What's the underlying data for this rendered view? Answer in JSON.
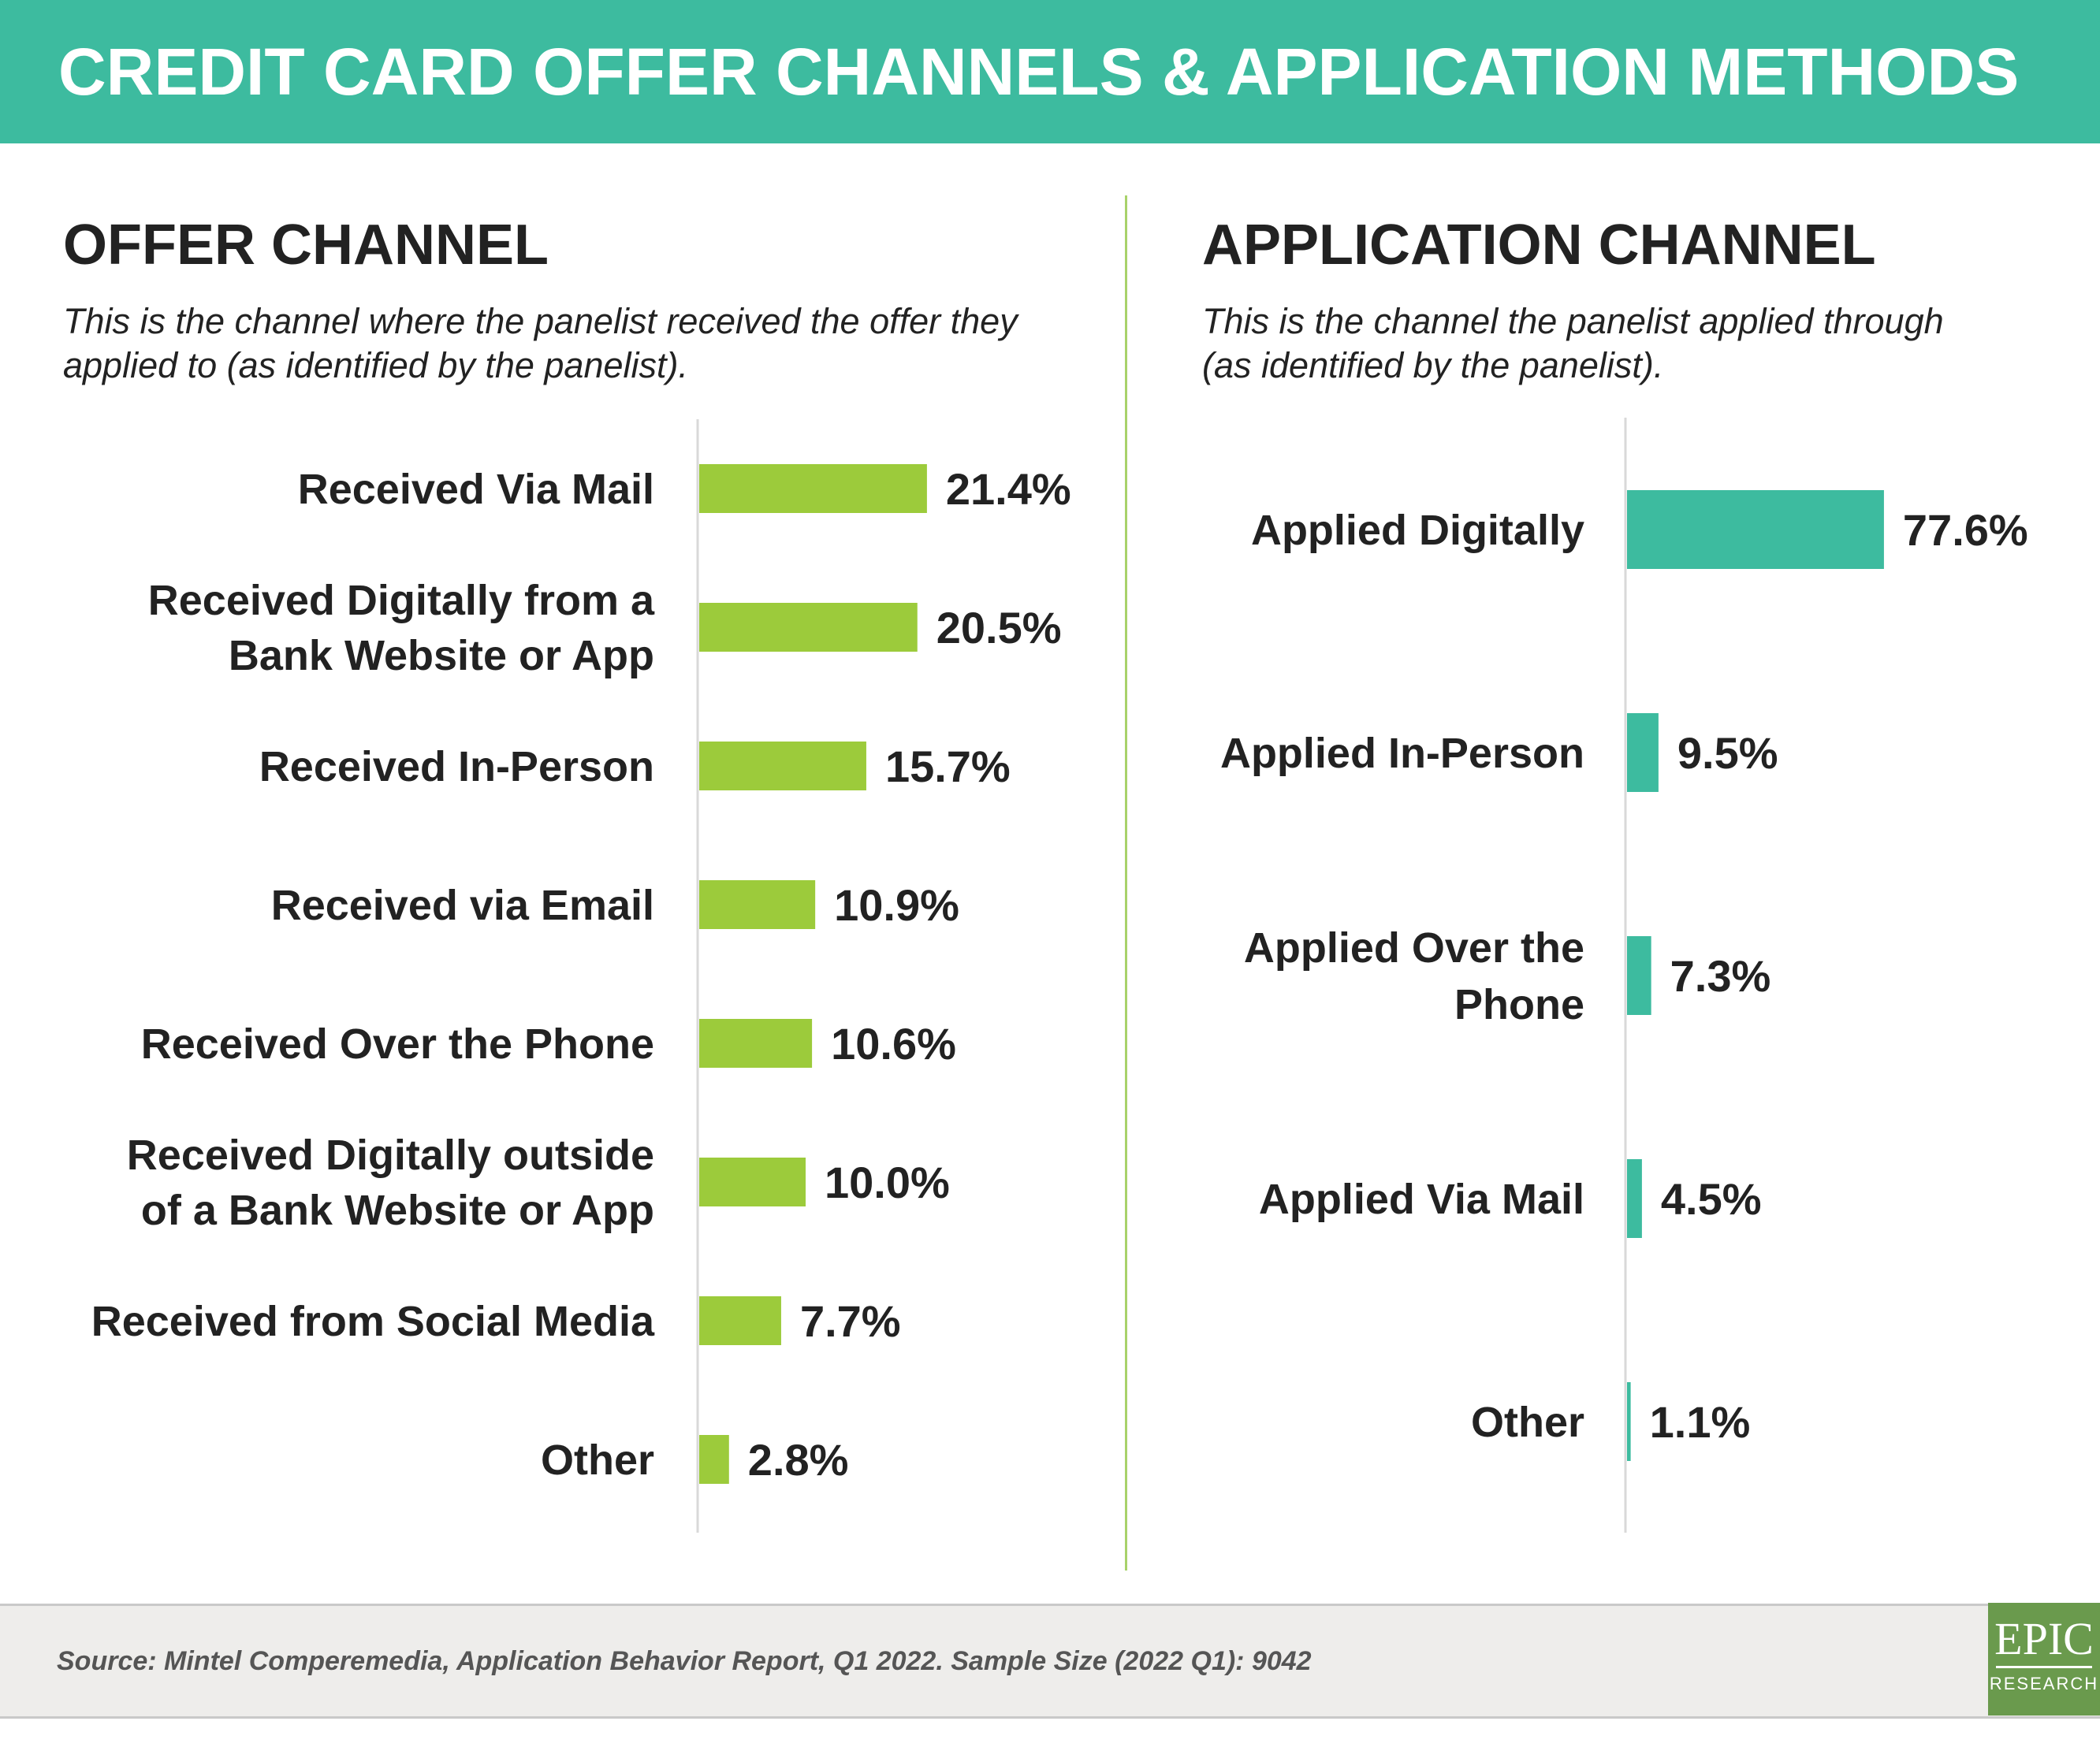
{
  "header": {
    "title": "CREDIT CARD OFFER CHANNELS & APPLICATION METHODS"
  },
  "offer_panel": {
    "title": "OFFER CHANNEL",
    "subtitle_line1": "This is the channel where the panelist received the offer they",
    "subtitle_line2": "applied to (as identified by the panelist)."
  },
  "application_panel": {
    "title": "APPLICATION CHANNEL",
    "subtitle_line1": "This is the channel the panelist applied through",
    "subtitle_line2": "(as identified by the panelist)."
  },
  "chart_data": [
    {
      "type": "bar",
      "orientation": "horizontal",
      "color": "#9ccb3b",
      "categories": [
        [
          "Received Via Mail"
        ],
        [
          "Received Digitally from a",
          "Bank Website or App"
        ],
        [
          "Received In-Person"
        ],
        [
          "Received via Email"
        ],
        [
          "Received Over the Phone"
        ],
        [
          "Received Digitally outside",
          "of a Bank Website or App"
        ],
        [
          "Received from Social Media"
        ],
        [
          "Other"
        ]
      ],
      "values": [
        21.4,
        20.5,
        15.7,
        10.9,
        10.6,
        10.0,
        7.7,
        2.8
      ],
      "value_labels": [
        "21.4%",
        "20.5%",
        "15.7%",
        "10.9%",
        "10.6%",
        "10.0%",
        "7.7%",
        "2.8%"
      ],
      "unit": "%"
    },
    {
      "type": "bar",
      "orientation": "horizontal",
      "color": "#3dbb9f",
      "categories": [
        [
          "Applied Digitally"
        ],
        [
          "Applied In-Person"
        ],
        [
          "Applied Over the",
          "Phone"
        ],
        [
          "Applied Via Mail"
        ],
        [
          "Other"
        ]
      ],
      "values": [
        77.6,
        9.5,
        7.3,
        4.5,
        1.1
      ],
      "value_labels": [
        "77.6%",
        "9.5%",
        "7.3%",
        "4.5%",
        "1.1%"
      ],
      "unit": "%"
    }
  ],
  "footer": {
    "source": "Source: Mintel Comperemedia, Application Behavior Report, Q1 2022. Sample Size (2022 Q1): 9042",
    "logo_main": "EPIC",
    "logo_sub": "RESEARCH"
  }
}
